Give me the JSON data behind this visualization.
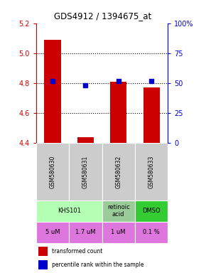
{
  "title": "GDS4912 / 1394675_at",
  "samples": [
    "GSM580630",
    "GSM580631",
    "GSM580632",
    "GSM580633"
  ],
  "bar_values": [
    5.09,
    4.44,
    4.81,
    4.77
  ],
  "percentile_values": [
    52,
    48,
    52,
    52
  ],
  "ylim_left": [
    4.4,
    5.2
  ],
  "ylim_right": [
    0,
    100
  ],
  "yticks_left": [
    4.4,
    4.6,
    4.8,
    5.0,
    5.2
  ],
  "yticks_right": [
    0,
    25,
    50,
    75,
    100
  ],
  "bar_color": "#cc0000",
  "percentile_color": "#0000cc",
  "bar_bottom": 4.4,
  "agent_groups": [
    {
      "cols": [
        0,
        1
      ],
      "label": "KHS101",
      "color": "#b3ffb3"
    },
    {
      "cols": [
        2
      ],
      "label": "retinoic\nacid",
      "color": "#99cc99"
    },
    {
      "cols": [
        3
      ],
      "label": "DMSO",
      "color": "#33cc33"
    }
  ],
  "dose_labels": [
    "5 uM",
    "1.7 uM",
    "1 uM",
    "0.1 %"
  ],
  "dose_color": "#dd77dd",
  "sample_bg_color": "#cccccc",
  "dotted_lines": [
    4.6,
    4.8,
    5.0
  ],
  "legend_bar_label": "transformed count",
  "legend_pct_label": "percentile rank within the sample"
}
